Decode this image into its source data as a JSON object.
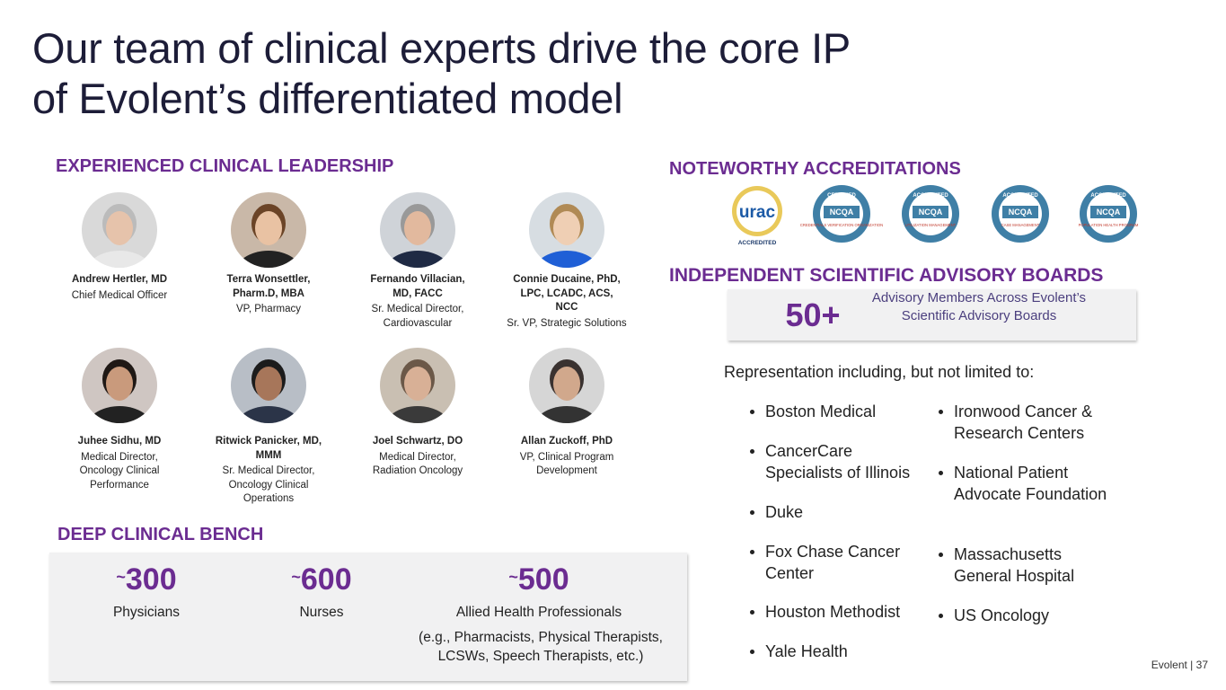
{
  "header": {
    "title_line1": "Our team of clinical experts drive the core IP",
    "title_line2": "of Evolent’s differentiated model"
  },
  "leadership": {
    "heading": "EXPERIENCED CLINICAL LEADERSHIP",
    "people": [
      {
        "name": "Andrew Hertler, MD",
        "role": "Chief Medical Officer"
      },
      {
        "name": "Terra Wonsettler, Pharm.D, MBA",
        "role": "VP, Pharmacy"
      },
      {
        "name": "Fernando Villacian, MD, FACC",
        "role": "Sr. Medical Director, Cardiovascular"
      },
      {
        "name": "Connie Ducaine, PhD, LPC, LCADC, ACS, NCC",
        "role": "Sr. VP, Strategic Solutions"
      },
      {
        "name": "Juhee Sidhu, MD",
        "role": "Medical Director, Oncology Clinical Performance"
      },
      {
        "name": "Ritwick Panicker, MD, MMM",
        "role": "Sr. Medical Director, Oncology Clinical Operations"
      },
      {
        "name": "Joel Schwartz, DO",
        "role": "Medical Director, Radiation Oncology"
      },
      {
        "name": "Allan Zuckoff, PhD",
        "role": "VP, Clinical Program Development"
      }
    ]
  },
  "bench": {
    "heading": "DEEP CLINICAL BENCH",
    "stats": [
      {
        "prefix": "~",
        "number": "300",
        "label": "Physicians"
      },
      {
        "prefix": "~",
        "number": "600",
        "label": "Nurses"
      },
      {
        "prefix": "~",
        "number": "500",
        "label": "Allied Health Professionals",
        "note": "(e.g., Pharmacists, Physical Therapists, LCSWs, Speech Therapists, etc.)"
      }
    ]
  },
  "accreditations": {
    "heading": "NOTEWORTHY ACCREDITATIONS",
    "badges": [
      {
        "top": "urac",
        "bottom": "ACCREDITED"
      },
      {
        "top": "CERTIFIED",
        "mid": "NCQA",
        "bottom": "CREDENTIALS VERIFICATION ORGANIZATION"
      },
      {
        "top": "ACCREDITED",
        "mid": "NCQA",
        "bottom": "UTILIZATION MANAGEMENT"
      },
      {
        "top": "ACCREDITED",
        "mid": "NCQA",
        "bottom": "CASE MANAGEMENT"
      },
      {
        "top": "ACCREDITED",
        "mid": "NCQA",
        "bottom": "POPULATION HEALTH PROGRAM"
      }
    ]
  },
  "advisory": {
    "heading": "INDEPENDENT SCIENTIFIC ADVISORY BOARDS",
    "stat": "50+",
    "description": "Advisory Members Across Evolent’s Scientific Advisory Boards",
    "intro": "Representation including, but not limited to:",
    "column1": [
      "Boston Medical",
      "CancerCare Specialists of Illinois",
      "Duke",
      "Fox Chase Cancer Center",
      "Houston Methodist",
      "Yale Health"
    ],
    "column2": [
      "Ironwood Cancer & Research Centers",
      "National Patient Advocate Foundation",
      "Massachusetts General Hospital",
      "US Oncology"
    ]
  },
  "footer": {
    "company": "Evolent",
    "separator": "|",
    "page": "37"
  }
}
